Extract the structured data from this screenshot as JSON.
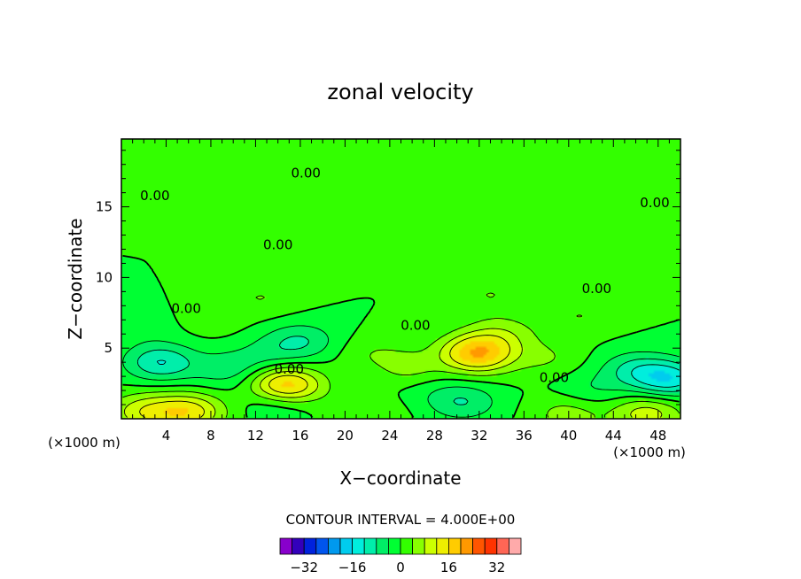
{
  "chart_data": {
    "type": "heatmap",
    "title": "zonal velocity",
    "xlabel": "X−coordinate",
    "ylabel": "Z−coordinate",
    "x_unit": "(×1000 m)",
    "x_ticks": [
      4,
      8,
      12,
      16,
      20,
      24,
      28,
      32,
      36,
      40,
      44,
      48
    ],
    "x_tick_labels": [
      "4",
      "8",
      "12",
      "16",
      "20",
      "24",
      "28",
      "32",
      "36",
      "40",
      "44",
      "48"
    ],
    "xlim": [
      0,
      50
    ],
    "y_ticks": [
      5,
      10,
      15
    ],
    "y_tick_labels": [
      "5",
      "10",
      "15"
    ],
    "ylim": [
      0,
      19.8
    ],
    "contour_interval_text": "CONTOUR INTERVAL =  4.000E+00",
    "contour_interval": 4,
    "contour_line_labels": [
      {
        "text": "0.00",
        "x": 16.5,
        "z": 17.4
      },
      {
        "text": "0.00",
        "x": 3.0,
        "z": 15.8
      },
      {
        "text": "0.00",
        "x": 47.7,
        "z": 15.3
      },
      {
        "text": "0.00",
        "x": 14.0,
        "z": 12.3
      },
      {
        "text": "0.00",
        "x": 42.5,
        "z": 9.2
      },
      {
        "text": "0.00",
        "x": 5.8,
        "z": 7.8
      },
      {
        "text": "0.00",
        "x": 26.3,
        "z": 6.6
      },
      {
        "text": "0.00",
        "x": 15.0,
        "z": 3.5
      },
      {
        "text": "0.00",
        "x": 38.7,
        "z": 2.9
      }
    ],
    "regions": [
      {
        "x": 3.5,
        "z": 4.0,
        "value": -12
      },
      {
        "x": 9.5,
        "z": 3.5,
        "value": -6
      },
      {
        "x": 16.0,
        "z": 5.5,
        "value": -8
      },
      {
        "x": 13.0,
        "z": 4.5,
        "value": -4
      },
      {
        "x": 2.0,
        "z": 6.5,
        "value": -2
      },
      {
        "x": 27.0,
        "z": 2.2,
        "value": -2
      },
      {
        "x": 30.5,
        "z": 1.2,
        "value": -8
      },
      {
        "x": 46.0,
        "z": 3.5,
        "value": -8
      },
      {
        "x": 49.0,
        "z": 2.8,
        "value": -14
      },
      {
        "x": 42.0,
        "z": 2.0,
        "value": -4
      },
      {
        "x": 14.0,
        "z": 1.3,
        "value": -6
      },
      {
        "x": 23.0,
        "z": 3.5,
        "value": -2
      },
      {
        "x": 15.0,
        "z": 2.2,
        "value": 8
      },
      {
        "x": 14.5,
        "z": 2.4,
        "value": 12
      },
      {
        "x": 25.5,
        "z": 3.5,
        "value": 6
      },
      {
        "x": 31.5,
        "z": 4.8,
        "value": 8
      },
      {
        "x": 32.0,
        "z": 4.5,
        "value": 12
      },
      {
        "x": 34.0,
        "z": 6.0,
        "value": 6
      },
      {
        "x": 22.5,
        "z": 4.5,
        "value": 4
      },
      {
        "x": 38.0,
        "z": 4.3,
        "value": 4
      },
      {
        "x": 2.0,
        "z": 0.5,
        "value": 10
      },
      {
        "x": 6.0,
        "z": 0.5,
        "value": 14
      },
      {
        "x": 22.0,
        "z": 0.4,
        "value": 4
      },
      {
        "x": 40.0,
        "z": 0.4,
        "value": 6
      },
      {
        "x": 47.0,
        "z": 0.4,
        "value": 10
      },
      {
        "x": 12.5,
        "z": 8.6,
        "value": 4
      },
      {
        "x": 33.0,
        "z": 8.8,
        "value": 4
      },
      {
        "x": 20.0,
        "z": 12.5,
        "value": 2
      },
      {
        "x": 45.0,
        "z": 13.5,
        "value": 2
      },
      {
        "x": 8.0,
        "z": 15.5,
        "value": 2
      },
      {
        "x": 15.0,
        "z": 19.0,
        "value": 2
      },
      {
        "x": 41.0,
        "z": 7.3,
        "value": 4
      },
      {
        "x": 8.0,
        "z": 7.0,
        "value": 2
      }
    ],
    "colorbar": {
      "tick_values": [
        -32,
        -16,
        0,
        16,
        32
      ],
      "tick_labels": [
        "−32",
        "−16",
        "0",
        "16",
        "32"
      ],
      "colors": [
        "#8800cc",
        "#3300bb",
        "#0022dd",
        "#0055ee",
        "#0099ee",
        "#00ccee",
        "#00eedd",
        "#00eeaa",
        "#00ee66",
        "#00ff33",
        "#33ff00",
        "#88ff00",
        "#ccff00",
        "#eeee00",
        "#ffcc00",
        "#ff9900",
        "#ff5500",
        "#ff3300",
        "#ff6655",
        "#ffaaaa"
      ],
      "range": [
        -40,
        40
      ]
    }
  }
}
